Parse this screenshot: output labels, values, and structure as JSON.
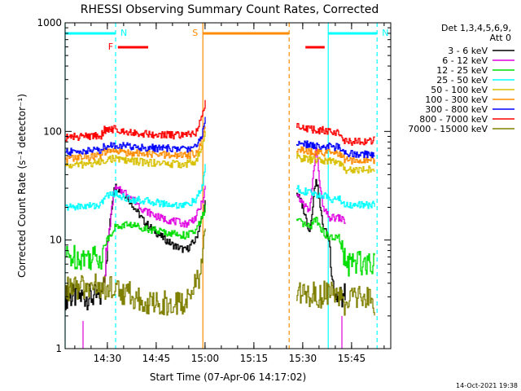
{
  "chart_data": {
    "type": "line",
    "title": "RHESSI Observing Summary Count Rates, Corrected",
    "xlabel": "Start Time (07-Apr-06 14:17:02)",
    "ylabel": "Corrected Count Rate (s⁻¹ detector⁻¹)",
    "yscale": "log",
    "ylim": [
      1,
      1000
    ],
    "xlim_minutes": [
      0,
      100
    ],
    "x_ticks": [
      {
        "label": "14:30",
        "minute": 12.97
      },
      {
        "label": "14:45",
        "minute": 27.97
      },
      {
        "label": "15:00",
        "minute": 42.97
      },
      {
        "label": "15:15",
        "minute": 57.97
      },
      {
        "label": "15:30",
        "minute": 72.97
      },
      {
        "label": "15:45",
        "minute": 87.97
      }
    ],
    "y_ticks": [
      "1",
      "10",
      "100",
      "1000"
    ],
    "legend_header": [
      "Det 1,3,4,5,6,9,",
      "Att 0"
    ],
    "series": [
      {
        "name": "3 - 6 keV",
        "color": "#000000",
        "seg1": [
          [
            0,
            3
          ],
          [
            11,
            3
          ],
          [
            12,
            5
          ],
          [
            15,
            32
          ],
          [
            19,
            25
          ],
          [
            24,
            15
          ],
          [
            29,
            11
          ],
          [
            33,
            9
          ],
          [
            37,
            8
          ],
          [
            40,
            10
          ],
          [
            42,
            16
          ],
          [
            43,
            22
          ]
        ],
        "seg2": [
          [
            71,
            28
          ],
          [
            73,
            20
          ],
          [
            75,
            12
          ],
          [
            77,
            38
          ],
          [
            79,
            14
          ],
          [
            81,
            10
          ],
          [
            82,
            5
          ],
          [
            83,
            3
          ],
          [
            84,
            3
          ],
          [
            86,
            3
          ]
        ]
      },
      {
        "name": "6 - 12 keV",
        "color": "#e000e0",
        "seg1": [
          [
            12,
            5
          ],
          [
            15,
            30
          ],
          [
            19,
            27
          ],
          [
            24,
            19
          ],
          [
            29,
            16
          ],
          [
            33,
            15
          ],
          [
            37,
            14
          ],
          [
            40,
            16
          ],
          [
            42,
            22
          ],
          [
            43,
            30
          ]
        ],
        "seg2": [
          [
            71,
            25
          ],
          [
            73,
            22
          ],
          [
            75,
            18
          ],
          [
            77,
            70
          ],
          [
            79,
            20
          ],
          [
            81,
            16
          ],
          [
            84,
            16
          ],
          [
            86,
            15
          ]
        ]
      },
      {
        "name": "12 - 25 keV",
        "color": "#00dd00",
        "seg1": [
          [
            0,
            7
          ],
          [
            11,
            7
          ],
          [
            12,
            9
          ],
          [
            15,
            13
          ],
          [
            19,
            14
          ],
          [
            24,
            13
          ],
          [
            29,
            12
          ],
          [
            33,
            11.5
          ],
          [
            37,
            11
          ],
          [
            40,
            12
          ],
          [
            42,
            16
          ],
          [
            43,
            20
          ]
        ],
        "seg2": [
          [
            71,
            15
          ],
          [
            73,
            14
          ],
          [
            75,
            13
          ],
          [
            77,
            16
          ],
          [
            79,
            12
          ],
          [
            81,
            10.5
          ],
          [
            84,
            10.5
          ],
          [
            86,
            6
          ],
          [
            95,
            6.5
          ]
        ]
      },
      {
        "name": "25 - 50 keV",
        "color": "#00ffff",
        "seg1": [
          [
            0,
            20
          ],
          [
            11,
            21
          ],
          [
            12,
            25
          ],
          [
            15,
            27
          ],
          [
            19,
            24
          ],
          [
            24,
            23
          ],
          [
            29,
            22
          ],
          [
            33,
            21
          ],
          [
            37,
            21
          ],
          [
            40,
            23
          ],
          [
            42,
            30
          ],
          [
            43,
            50
          ]
        ],
        "seg2": [
          [
            71,
            30
          ],
          [
            75,
            27
          ],
          [
            78,
            26
          ],
          [
            82,
            24
          ],
          [
            84,
            24
          ],
          [
            86,
            21
          ],
          [
            95,
            21
          ]
        ]
      },
      {
        "name": "50 - 100 keV",
        "color": "#d8c000",
        "seg1": [
          [
            0,
            48
          ],
          [
            11,
            52
          ],
          [
            12,
            55
          ],
          [
            15,
            56
          ],
          [
            19,
            54
          ],
          [
            24,
            52
          ],
          [
            29,
            51
          ],
          [
            33,
            50
          ],
          [
            37,
            50
          ],
          [
            40,
            53
          ],
          [
            42,
            70
          ],
          [
            43,
            95
          ]
        ],
        "seg2": [
          [
            71,
            58
          ],
          [
            75,
            55
          ],
          [
            78,
            54
          ],
          [
            82,
            53
          ],
          [
            84,
            53
          ],
          [
            86,
            44
          ],
          [
            95,
            45
          ]
        ]
      },
      {
        "name": "100 - 300 keV",
        "color": "#ff8c00",
        "seg1": [
          [
            0,
            56
          ],
          [
            11,
            60
          ],
          [
            12,
            64
          ],
          [
            15,
            66
          ],
          [
            19,
            64
          ],
          [
            24,
            62
          ],
          [
            29,
            61
          ],
          [
            33,
            60
          ],
          [
            37,
            60
          ],
          [
            40,
            63
          ],
          [
            42,
            85
          ],
          [
            43,
            115
          ]
        ],
        "seg2": [
          [
            71,
            68
          ],
          [
            75,
            65
          ],
          [
            78,
            64
          ],
          [
            82,
            63
          ],
          [
            84,
            63
          ],
          [
            86,
            54
          ],
          [
            95,
            55
          ]
        ]
      },
      {
        "name": "300 - 800 keV",
        "color": "#0000ff",
        "seg1": [
          [
            0,
            64
          ],
          [
            11,
            68
          ],
          [
            12,
            73
          ],
          [
            15,
            75
          ],
          [
            19,
            73
          ],
          [
            24,
            71
          ],
          [
            29,
            70
          ],
          [
            33,
            69
          ],
          [
            37,
            69
          ],
          [
            40,
            72
          ],
          [
            42,
            95
          ],
          [
            43,
            130
          ]
        ],
        "seg2": [
          [
            71,
            78
          ],
          [
            75,
            75
          ],
          [
            78,
            73
          ],
          [
            82,
            72
          ],
          [
            84,
            72
          ],
          [
            86,
            62
          ],
          [
            95,
            62
          ]
        ]
      },
      {
        "name": "800 - 7000 keV",
        "color": "#ff0000",
        "seg1": [
          [
            0,
            88
          ],
          [
            11,
            92
          ],
          [
            12,
            103
          ],
          [
            15,
            105
          ],
          [
            19,
            100
          ],
          [
            24,
            95
          ],
          [
            29,
            93
          ],
          [
            33,
            92
          ],
          [
            37,
            92
          ],
          [
            40,
            98
          ],
          [
            42,
            135
          ],
          [
            43,
            185
          ]
        ],
        "seg2": [
          [
            71,
            118
          ],
          [
            73,
            108
          ],
          [
            75,
            105
          ],
          [
            78,
            103
          ],
          [
            82,
            100
          ],
          [
            84,
            98
          ],
          [
            86,
            80
          ],
          [
            95,
            82
          ]
        ]
      },
      {
        "name": "7000 - 15000 keV",
        "color": "#808000",
        "seg1": [
          [
            0,
            3.5
          ],
          [
            11,
            3.8
          ],
          [
            12,
            3.5
          ],
          [
            15,
            3.6
          ],
          [
            19,
            3.2
          ],
          [
            22,
            3
          ],
          [
            24,
            2.5
          ],
          [
            29,
            2.6
          ],
          [
            33,
            2.6
          ],
          [
            37,
            2.7
          ],
          [
            39,
            3.4
          ],
          [
            41,
            4.5
          ],
          [
            42,
            8
          ],
          [
            43,
            13
          ]
        ],
        "seg2": [
          [
            71,
            3.5
          ],
          [
            75,
            3.2
          ],
          [
            78,
            3
          ],
          [
            82,
            3.6
          ],
          [
            86,
            2.5
          ],
          [
            90,
            3
          ],
          [
            95,
            2.6
          ]
        ]
      }
    ],
    "annotations": [
      {
        "label": "N",
        "color": "#00ffff",
        "from_minute": 0,
        "to_minute": 15.5,
        "level": "top",
        "vline_solid": 0,
        "vline_dashed": 15.5
      },
      {
        "label": "N",
        "color": "#00ffff",
        "from_minute": 80.8,
        "to_minute": 95.8,
        "level": "top",
        "vline_solid": 80.8,
        "vline_dashed": 95.8
      },
      {
        "label": "F",
        "color": "#ff0000",
        "from_minute": 16.2,
        "to_minute": 25.5,
        "level": "second",
        "vline_solid": null,
        "vline_dashed": null
      },
      {
        "label": "",
        "color": "#ff0000",
        "from_minute": 73.8,
        "to_minute": 79.7,
        "level": "second",
        "vline_solid": null,
        "vline_dashed": null
      },
      {
        "label": "S",
        "color": "#ff8c00",
        "from_minute": 42.3,
        "to_minute": 68.8,
        "level": "top",
        "vline_solid": 42.3,
        "vline_dashed": 68.8
      }
    ],
    "extra_marks": [
      {
        "color": "#e000e0",
        "minute": 5.5,
        "from": 1,
        "to": 1.8
      },
      {
        "color": "#e000e0",
        "minute": 85.0,
        "from": 1,
        "to": 2.0
      }
    ],
    "grid": false,
    "legend_placement": "right"
  },
  "footer_timestamp": "14-Oct-2021 19:38"
}
